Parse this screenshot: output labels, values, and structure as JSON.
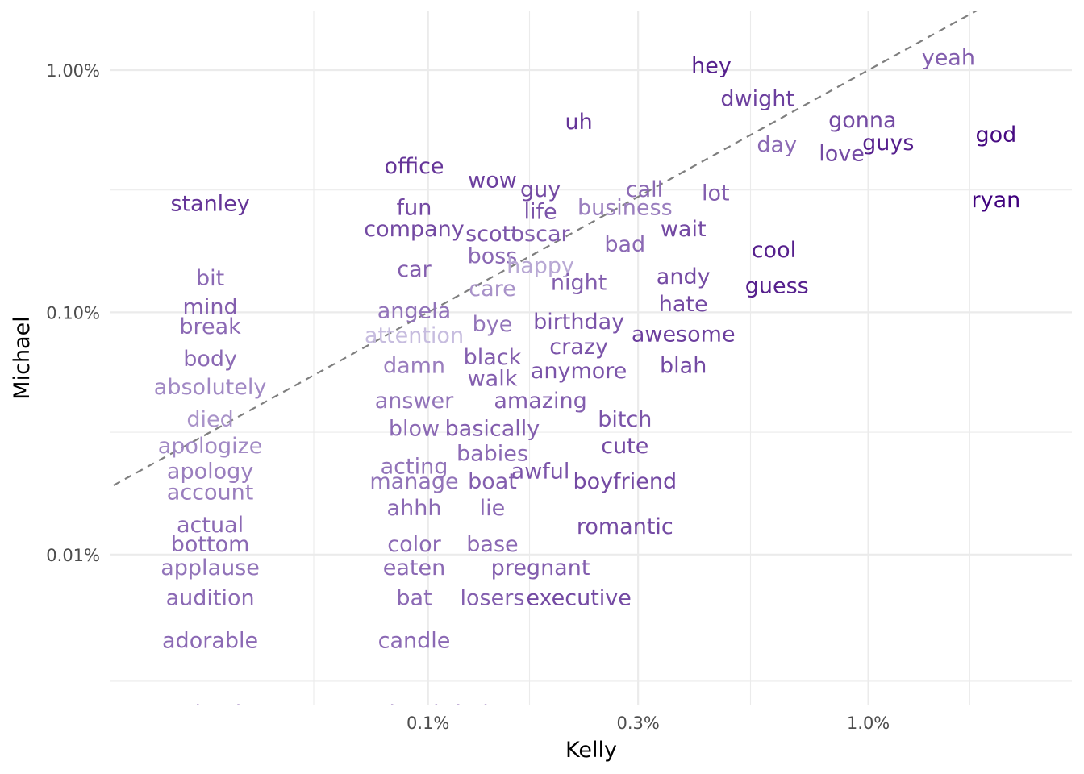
{
  "chart_data": {
    "type": "scatter",
    "title": "",
    "xlabel": "Kelly",
    "ylabel": "Michael",
    "x_scale": "log10",
    "y_scale": "log10",
    "xlim": [
      0.00019,
      0.029
    ],
    "ylim": [
      2.4e-05,
      0.0175
    ],
    "x_ticks": [
      {
        "value": 0.001,
        "label": "0.1%"
      },
      {
        "value": 0.003,
        "label": "0.3%"
      },
      {
        "value": 0.01,
        "label": "1.0%"
      }
    ],
    "y_ticks": [
      {
        "value": 0.0001,
        "label": "0.01%"
      },
      {
        "value": 0.001,
        "label": "0.10%"
      },
      {
        "value": 0.01,
        "label": "1.00%"
      }
    ],
    "x_minor_gridlines": [
      0.00055,
      0.0017,
      0.0054,
      0.017
    ],
    "y_minor_gridlines": [
      3e-05,
      0.00032,
      0.0032
    ],
    "reference_line": "y = x (dashed)",
    "grid": true,
    "legend": "none",
    "color_scale": {
      "low": "#d6d2ea",
      "high": "#3f007d"
    },
    "points": [
      {
        "label": "hey",
        "x": 0.0044,
        "y": 0.0104,
        "shade": 0.85
      },
      {
        "label": "yeah",
        "x": 0.0152,
        "y": 0.0112,
        "shade": 0.55
      },
      {
        "label": "dwight",
        "x": 0.0056,
        "y": 0.0076,
        "shade": 0.7
      },
      {
        "label": "gonna",
        "x": 0.0097,
        "y": 0.0062,
        "shade": 0.65
      },
      {
        "label": "god",
        "x": 0.0195,
        "y": 0.0054,
        "shade": 0.95
      },
      {
        "label": "uh",
        "x": 0.0022,
        "y": 0.0061,
        "shade": 0.75
      },
      {
        "label": "day",
        "x": 0.0062,
        "y": 0.0049,
        "shade": 0.5
      },
      {
        "label": "guys",
        "x": 0.0111,
        "y": 0.005,
        "shade": 0.85
      },
      {
        "label": "love",
        "x": 0.0087,
        "y": 0.0045,
        "shade": 0.65
      },
      {
        "label": "office",
        "x": 0.00093,
        "y": 0.004,
        "shade": 0.75
      },
      {
        "label": "wow",
        "x": 0.0014,
        "y": 0.0035,
        "shade": 0.7
      },
      {
        "label": "guy",
        "x": 0.0018,
        "y": 0.0032,
        "shade": 0.65
      },
      {
        "label": "call",
        "x": 0.0031,
        "y": 0.0032,
        "shade": 0.5
      },
      {
        "label": "lot",
        "x": 0.0045,
        "y": 0.0031,
        "shade": 0.55
      },
      {
        "label": "stanley",
        "x": 0.00032,
        "y": 0.0028,
        "shade": 0.75
      },
      {
        "label": "fun",
        "x": 0.00093,
        "y": 0.0027,
        "shade": 0.65
      },
      {
        "label": "life",
        "x": 0.0018,
        "y": 0.0026,
        "shade": 0.6
      },
      {
        "label": "business",
        "x": 0.0028,
        "y": 0.0027,
        "shade": 0.4
      },
      {
        "label": "ryan",
        "x": 0.0195,
        "y": 0.0029,
        "shade": 1.0
      },
      {
        "label": "company",
        "x": 0.00093,
        "y": 0.0022,
        "shade": 0.65
      },
      {
        "label": "scott",
        "x": 0.0014,
        "y": 0.0021,
        "shade": 0.6
      },
      {
        "label": "oscar",
        "x": 0.0018,
        "y": 0.0021,
        "shade": 0.55
      },
      {
        "label": "wait",
        "x": 0.0038,
        "y": 0.0022,
        "shade": 0.65
      },
      {
        "label": "bad",
        "x": 0.0028,
        "y": 0.0019,
        "shade": 0.5
      },
      {
        "label": "boss",
        "x": 0.0014,
        "y": 0.0017,
        "shade": 0.5
      },
      {
        "label": "cool",
        "x": 0.0061,
        "y": 0.0018,
        "shade": 0.85
      },
      {
        "label": "happy",
        "x": 0.0018,
        "y": 0.00155,
        "shade": 0.2
      },
      {
        "label": "car",
        "x": 0.00093,
        "y": 0.0015,
        "shade": 0.55
      },
      {
        "label": "bit",
        "x": 0.00032,
        "y": 0.00138,
        "shade": 0.5
      },
      {
        "label": "andy",
        "x": 0.0038,
        "y": 0.0014,
        "shade": 0.65
      },
      {
        "label": "night",
        "x": 0.0022,
        "y": 0.00132,
        "shade": 0.55
      },
      {
        "label": "care",
        "x": 0.0014,
        "y": 0.00125,
        "shade": 0.3
      },
      {
        "label": "guess",
        "x": 0.0062,
        "y": 0.00128,
        "shade": 0.85
      },
      {
        "label": "mind",
        "x": 0.00032,
        "y": 0.00105,
        "shade": 0.55
      },
      {
        "label": "hate",
        "x": 0.0038,
        "y": 0.00108,
        "shade": 0.65
      },
      {
        "label": "angela",
        "x": 0.00093,
        "y": 0.00101,
        "shade": 0.45
      },
      {
        "label": "bye",
        "x": 0.0014,
        "y": 0.00089,
        "shade": 0.45
      },
      {
        "label": "birthday",
        "x": 0.0022,
        "y": 0.00091,
        "shade": 0.6
      },
      {
        "label": "break",
        "x": 0.00032,
        "y": 0.00087,
        "shade": 0.5
      },
      {
        "label": "attention",
        "x": 0.00093,
        "y": 0.0008,
        "shade": 0.1
      },
      {
        "label": "awesome",
        "x": 0.0038,
        "y": 0.00081,
        "shade": 0.7
      },
      {
        "label": "crazy",
        "x": 0.0022,
        "y": 0.00072,
        "shade": 0.6
      },
      {
        "label": "body",
        "x": 0.00032,
        "y": 0.00064,
        "shade": 0.5
      },
      {
        "label": "black",
        "x": 0.0014,
        "y": 0.00065,
        "shade": 0.55
      },
      {
        "label": "damn",
        "x": 0.00093,
        "y": 0.0006,
        "shade": 0.4
      },
      {
        "label": "blah",
        "x": 0.0038,
        "y": 0.0006,
        "shade": 0.65
      },
      {
        "label": "anymore",
        "x": 0.0022,
        "y": 0.00057,
        "shade": 0.6
      },
      {
        "label": "walk",
        "x": 0.0014,
        "y": 0.00053,
        "shade": 0.55
      },
      {
        "label": "absolutely",
        "x": 0.00032,
        "y": 0.00049,
        "shade": 0.35
      },
      {
        "label": "answer",
        "x": 0.00093,
        "y": 0.00043,
        "shade": 0.45
      },
      {
        "label": "amazing",
        "x": 0.0018,
        "y": 0.00043,
        "shade": 0.55
      },
      {
        "label": "died",
        "x": 0.00032,
        "y": 0.00036,
        "shade": 0.3
      },
      {
        "label": "bitch",
        "x": 0.0028,
        "y": 0.00036,
        "shade": 0.6
      },
      {
        "label": "blow",
        "x": 0.00093,
        "y": 0.00033,
        "shade": 0.5
      },
      {
        "label": "basically",
        "x": 0.0014,
        "y": 0.00033,
        "shade": 0.55
      },
      {
        "label": "apologize",
        "x": 0.00032,
        "y": 0.00028,
        "shade": 0.35
      },
      {
        "label": "cute",
        "x": 0.0028,
        "y": 0.00028,
        "shade": 0.65
      },
      {
        "label": "babies",
        "x": 0.0014,
        "y": 0.00026,
        "shade": 0.5
      },
      {
        "label": "acting",
        "x": 0.00093,
        "y": 0.00023,
        "shade": 0.45
      },
      {
        "label": "apology",
        "x": 0.00032,
        "y": 0.00022,
        "shade": 0.4
      },
      {
        "label": "awful",
        "x": 0.0018,
        "y": 0.00022,
        "shade": 0.6
      },
      {
        "label": "manage",
        "x": 0.00093,
        "y": 0.0002,
        "shade": 0.45
      },
      {
        "label": "boat",
        "x": 0.0014,
        "y": 0.0002,
        "shade": 0.55
      },
      {
        "label": "boyfriend",
        "x": 0.0028,
        "y": 0.0002,
        "shade": 0.65
      },
      {
        "label": "account",
        "x": 0.00032,
        "y": 0.00018,
        "shade": 0.4
      },
      {
        "label": "ahhh",
        "x": 0.00093,
        "y": 0.000155,
        "shade": 0.5
      },
      {
        "label": "lie",
        "x": 0.0014,
        "y": 0.000155,
        "shade": 0.5
      },
      {
        "label": "actual",
        "x": 0.00032,
        "y": 0.000132,
        "shade": 0.5
      },
      {
        "label": "romantic",
        "x": 0.0028,
        "y": 0.00013,
        "shade": 0.65
      },
      {
        "label": "bottom",
        "x": 0.00032,
        "y": 0.00011,
        "shade": 0.5
      },
      {
        "label": "color",
        "x": 0.00093,
        "y": 0.00011,
        "shade": 0.5
      },
      {
        "label": "base",
        "x": 0.0014,
        "y": 0.00011,
        "shade": 0.5
      },
      {
        "label": "applause",
        "x": 0.00032,
        "y": 8.8e-05,
        "shade": 0.45
      },
      {
        "label": "eaten",
        "x": 0.00093,
        "y": 8.8e-05,
        "shade": 0.5
      },
      {
        "label": "pregnant",
        "x": 0.0018,
        "y": 8.8e-05,
        "shade": 0.55
      },
      {
        "label": "audition",
        "x": 0.00032,
        "y": 6.6e-05,
        "shade": 0.5
      },
      {
        "label": "bat",
        "x": 0.00093,
        "y": 6.6e-05,
        "shade": 0.5
      },
      {
        "label": "losers",
        "x": 0.0014,
        "y": 6.6e-05,
        "shade": 0.55
      },
      {
        "label": "executive",
        "x": 0.0022,
        "y": 6.6e-05,
        "shade": 0.65
      },
      {
        "label": "adorable",
        "x": 0.00032,
        "y": 4.4e-05,
        "shade": 0.5
      },
      {
        "label": "candle",
        "x": 0.00093,
        "y": 4.4e-05,
        "shade": 0.5
      },
      {
        "label": "animals",
        "x": 0.00032,
        "y": 2.2e-05,
        "shade": 0.5
      },
      {
        "label": "brad",
        "x": 0.00093,
        "y": 2.2e-05,
        "shade": 0.5
      },
      {
        "label": "belong",
        "x": 0.0014,
        "y": 2.2e-05,
        "shade": 0.5
      }
    ]
  }
}
